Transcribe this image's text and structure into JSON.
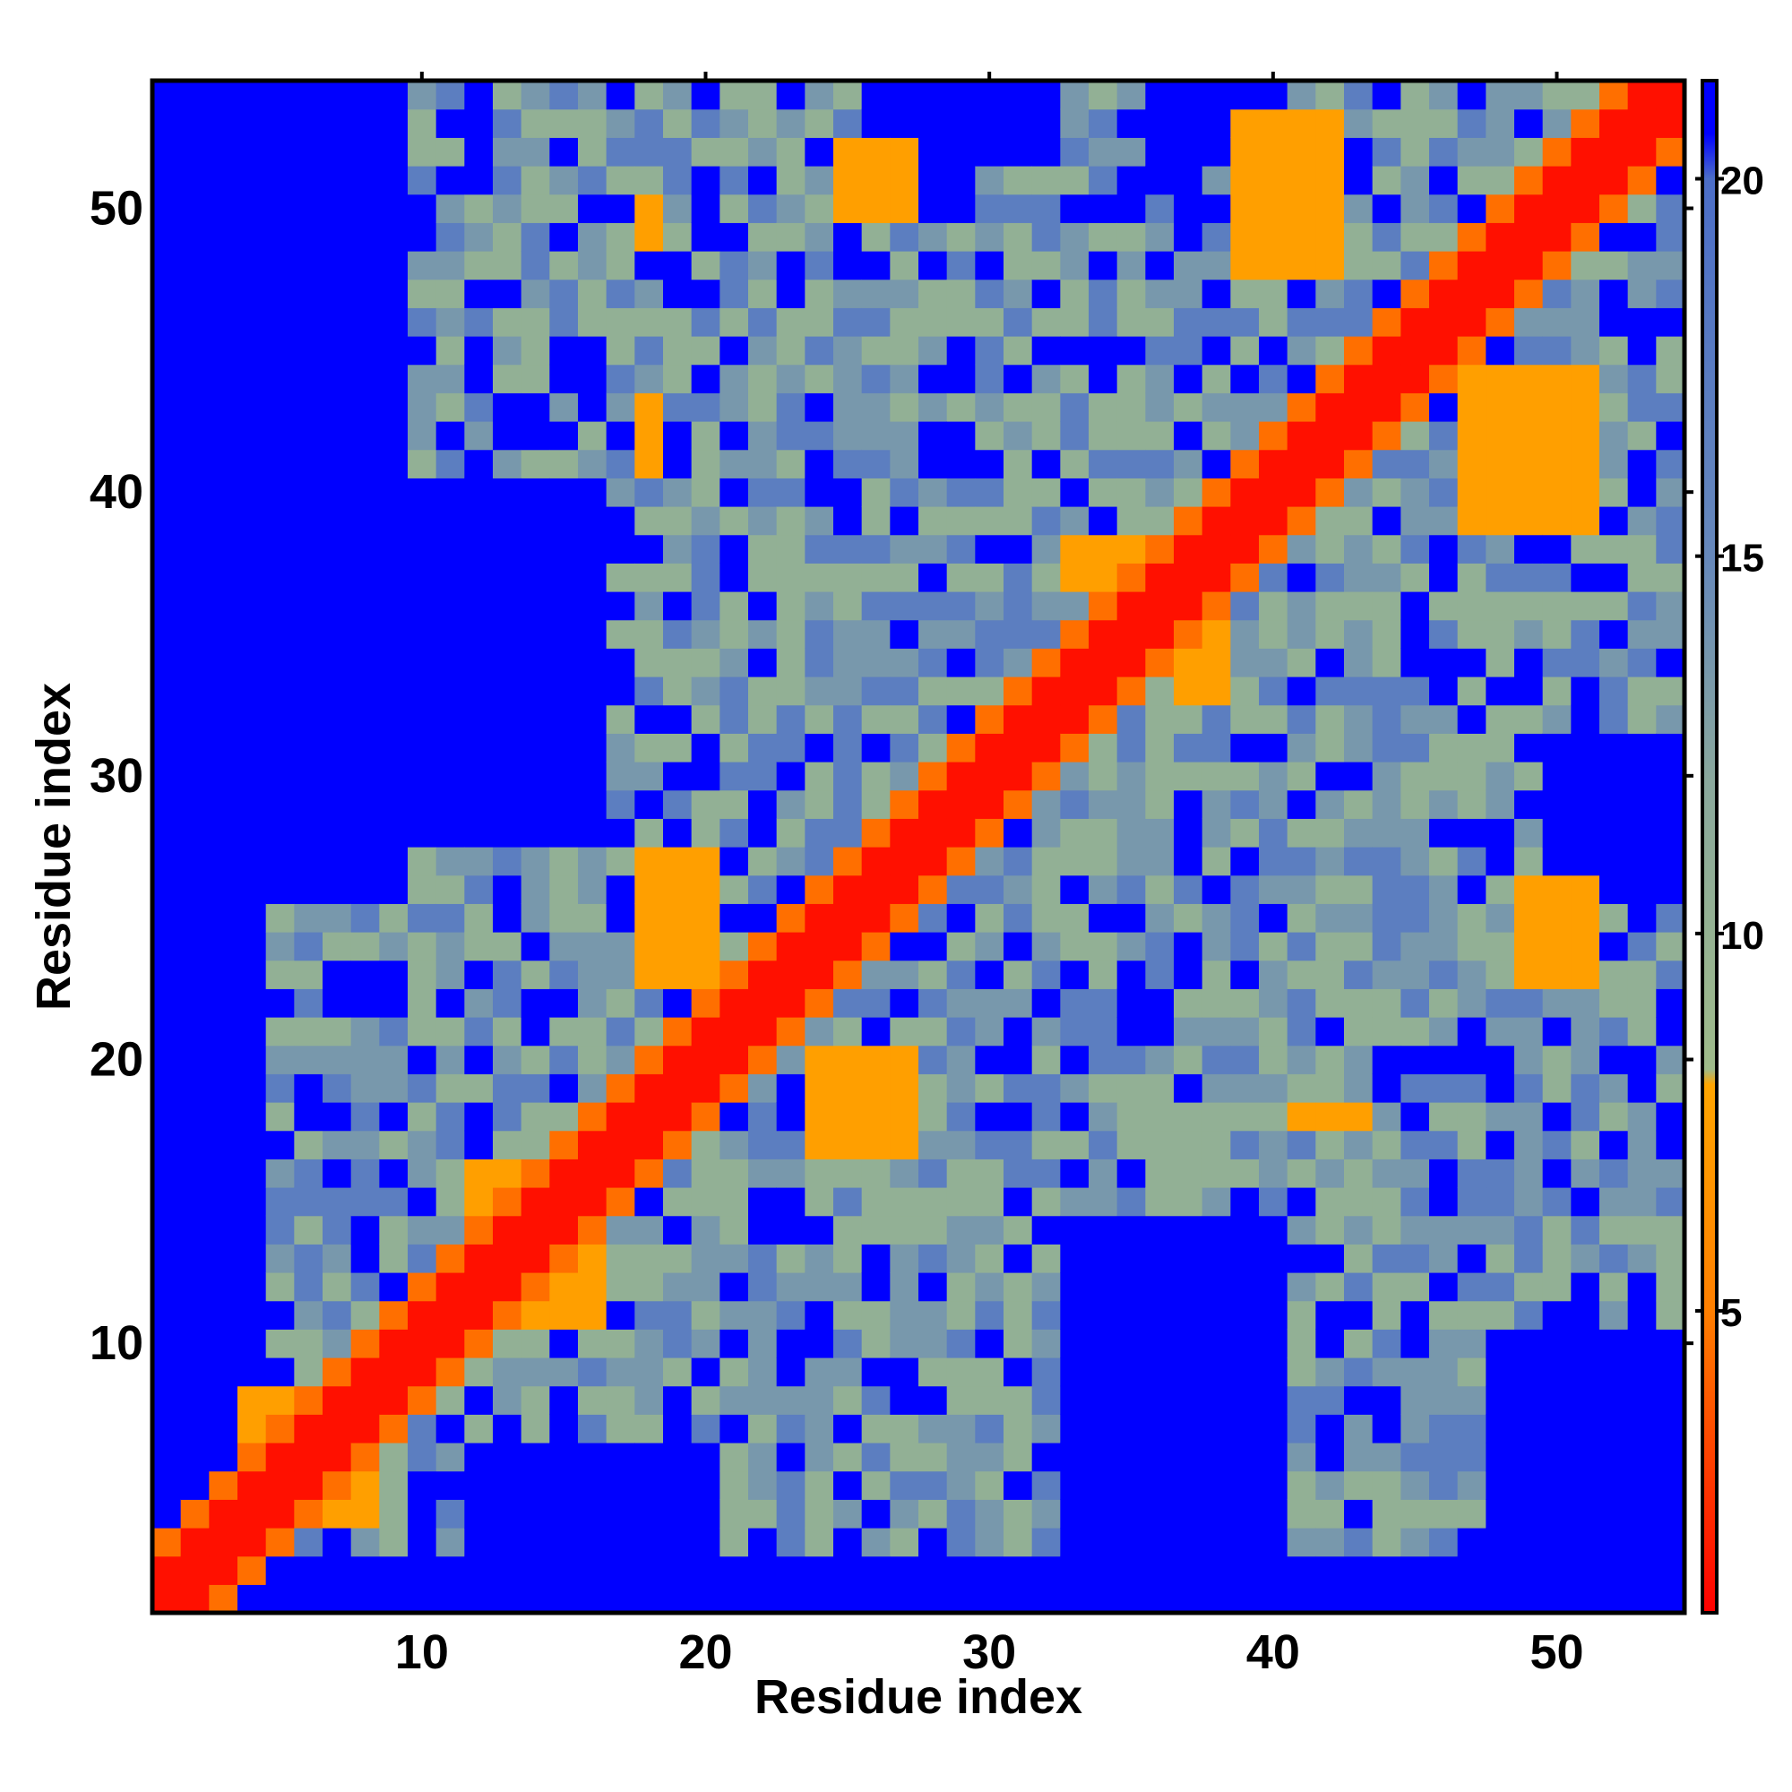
{
  "chart_data": {
    "type": "heatmap",
    "title": "",
    "xlabel": "Residue index",
    "ylabel": "Residue index",
    "n": 54,
    "x_ticks": [
      10,
      20,
      30,
      40,
      50
    ],
    "y_ticks": [
      10,
      20,
      30,
      40,
      50
    ],
    "colorbar": {
      "range": [
        1,
        21.3
      ],
      "ticks": [
        5,
        10,
        15,
        20
      ],
      "stops": [
        {
          "value": 1.0,
          "color": "#ff0000"
        },
        {
          "value": 5.0,
          "color": "#ff7f00"
        },
        {
          "value": 8.0,
          "color": "#ffa500"
        },
        {
          "value": 8.2,
          "color": "#9fbb8a"
        },
        {
          "value": 12.0,
          "color": "#8aa89c"
        },
        {
          "value": 15.0,
          "color": "#6688bb"
        },
        {
          "value": 20.0,
          "color": "#4c6ec8"
        },
        {
          "value": 20.6,
          "color": "#0000ff"
        },
        {
          "value": 21.3,
          "color": "#0000ff"
        }
      ]
    },
    "value_classes": {
      "diagonal": 1.5,
      "near_contact": 4.5,
      "contact": 7.5,
      "mid": 10.5,
      "mid_far": 13.5,
      "far": 17.0,
      "very_far": 21.0
    },
    "contact_regions": [
      {
        "x": [
          24,
          27
        ],
        "y": [
          17,
          20
        ]
      },
      {
        "x": [
          18,
          20
        ],
        "y": [
          23,
          27
        ]
      },
      {
        "x": [
          39,
          42
        ],
        "y": [
          48,
          53
        ]
      },
      {
        "x": [
          47,
          51
        ],
        "y": [
          39,
          44
        ]
      },
      {
        "x": [
          33,
          35
        ],
        "y": [
          37,
          38
        ]
      },
      {
        "x": [
          37,
          38
        ],
        "y": [
          33,
          35
        ]
      },
      {
        "x": [
          4,
          7
        ],
        "y": [
          5,
          8
        ]
      },
      {
        "x": [
          5,
          8
        ],
        "y": [
          4,
          7
        ]
      },
      {
        "x": [
          12,
          14
        ],
        "y": [
          14,
          16
        ]
      },
      {
        "x": [
          14,
          16
        ],
        "y": [
          11,
          13
        ]
      },
      {
        "x": [
          41,
          43
        ],
        "y": [
          18,
          18
        ]
      },
      {
        "x": [
          49,
          51
        ],
        "y": [
          23,
          26
        ]
      },
      {
        "x": [
          25,
          27
        ],
        "y": [
          50,
          52
        ]
      },
      {
        "x": [
          18,
          18
        ],
        "y": [
          41,
          43
        ]
      },
      {
        "x": [
          18,
          18
        ],
        "y": [
          49,
          50
        ]
      }
    ],
    "far_regions": [
      {
        "x": [
          1,
          4
        ],
        "y": [
          1,
          54
        ]
      },
      {
        "x": [
          1,
          54
        ],
        "y": [
          1,
          2
        ]
      },
      {
        "x": [
          33,
          40
        ],
        "y": [
          1,
          14
        ]
      },
      {
        "x": [
          1,
          9
        ],
        "y": [
          26,
          54
        ]
      },
      {
        "x": [
          12,
          20
        ],
        "y": [
          1,
          6
        ]
      },
      {
        "x": [
          48,
          54
        ],
        "y": [
          1,
          10
        ]
      },
      {
        "x": [
          36,
          40
        ],
        "y": [
          52,
          54
        ]
      },
      {
        "x": [
          50,
          54
        ],
        "y": [
          26,
          31
        ]
      },
      {
        "x": [
          10,
          16
        ],
        "y": [
          28,
          40
        ]
      },
      {
        "x": [
          26,
          32
        ],
        "y": [
          52,
          54
        ]
      }
    ]
  }
}
